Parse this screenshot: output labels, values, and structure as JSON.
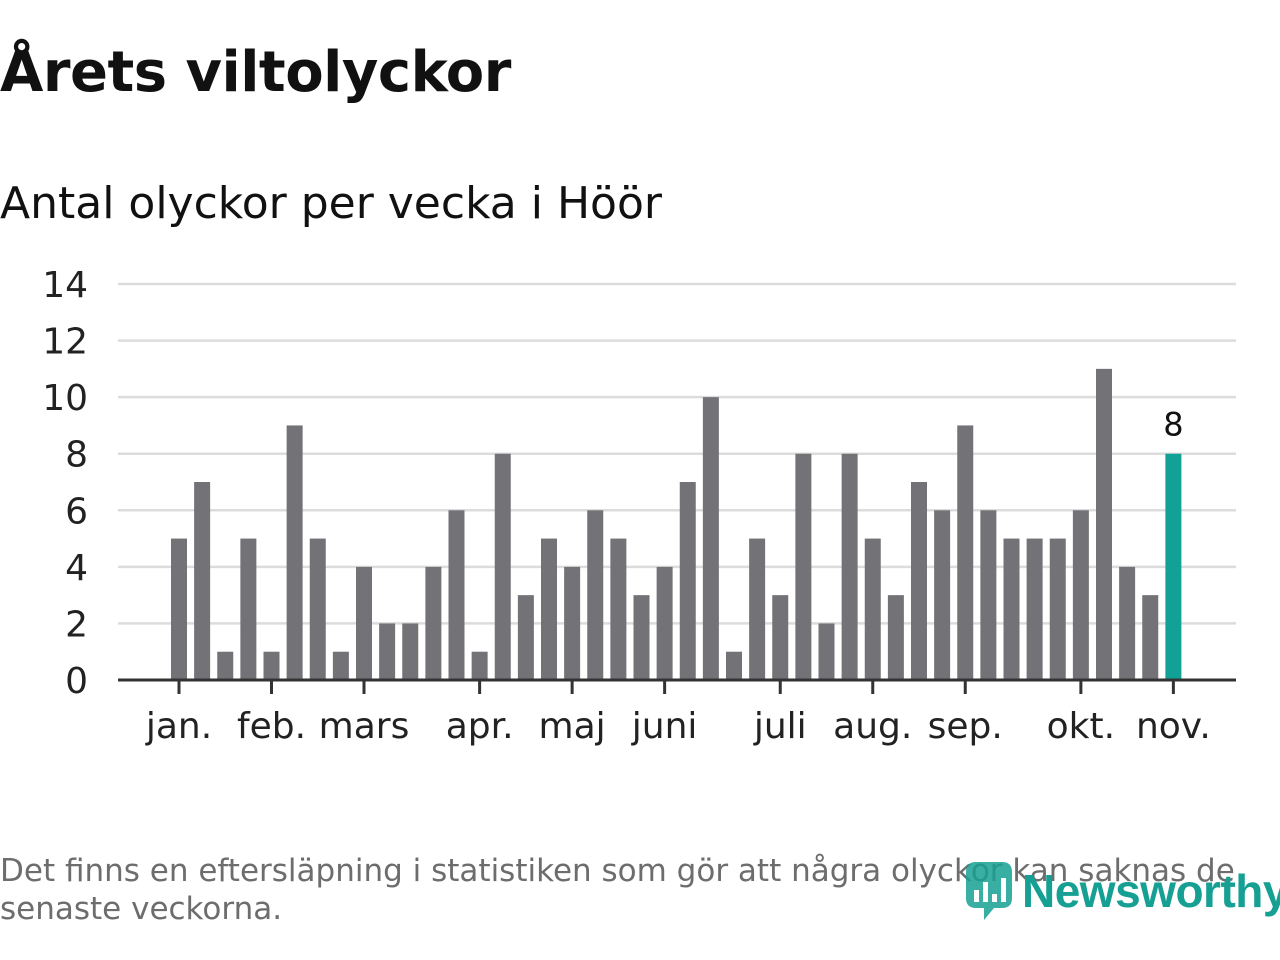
{
  "title": "Årets viltolyckor",
  "subtitle": "Antal olyckor per vecka i Höör",
  "footnote": "Det finns en eftersläpning i statistiken som gör att några olyckor kan saknas de senaste veckorna.",
  "logo_text": "Newsworthy",
  "colors": {
    "bar": "#737277",
    "highlight": "#12a196",
    "grid": "#dcdcdc",
    "axis": "#333333",
    "logo": "#16a093"
  },
  "chart_data": {
    "type": "bar",
    "title": "Antal olyckor per vecka i Höör",
    "xlabel": "",
    "ylabel": "",
    "ylim": [
      0,
      14
    ],
    "yticks": [
      0,
      2,
      4,
      6,
      8,
      10,
      12,
      14
    ],
    "grid": true,
    "weeks": [
      1,
      2,
      3,
      4,
      5,
      6,
      7,
      8,
      9,
      10,
      11,
      12,
      13,
      14,
      15,
      16,
      17,
      18,
      19,
      20,
      21,
      22,
      23,
      24,
      25,
      26,
      27,
      28,
      29,
      30,
      31,
      32,
      33,
      34,
      35,
      36,
      37,
      38,
      39,
      40,
      41,
      42,
      43,
      44
    ],
    "values": [
      5,
      7,
      1,
      5,
      1,
      9,
      5,
      1,
      4,
      2,
      2,
      4,
      6,
      1,
      8,
      3,
      5,
      4,
      6,
      5,
      3,
      4,
      7,
      10,
      1,
      5,
      3,
      8,
      2,
      8,
      5,
      3,
      7,
      6,
      9,
      6,
      5,
      5,
      5,
      6,
      11,
      4,
      3,
      8
    ],
    "highlight_index": 43,
    "highlight_label": "8",
    "month_ticks": [
      {
        "label": "jan.",
        "week": 1
      },
      {
        "label": "feb.",
        "week": 5
      },
      {
        "label": "mars",
        "week": 9
      },
      {
        "label": "apr.",
        "week": 14
      },
      {
        "label": "maj",
        "week": 18
      },
      {
        "label": "juni",
        "week": 22
      },
      {
        "label": "juli",
        "week": 27
      },
      {
        "label": "aug.",
        "week": 31
      },
      {
        "label": "sep.",
        "week": 35
      },
      {
        "label": "okt.",
        "week": 40
      },
      {
        "label": "nov.",
        "week": 44
      }
    ]
  }
}
